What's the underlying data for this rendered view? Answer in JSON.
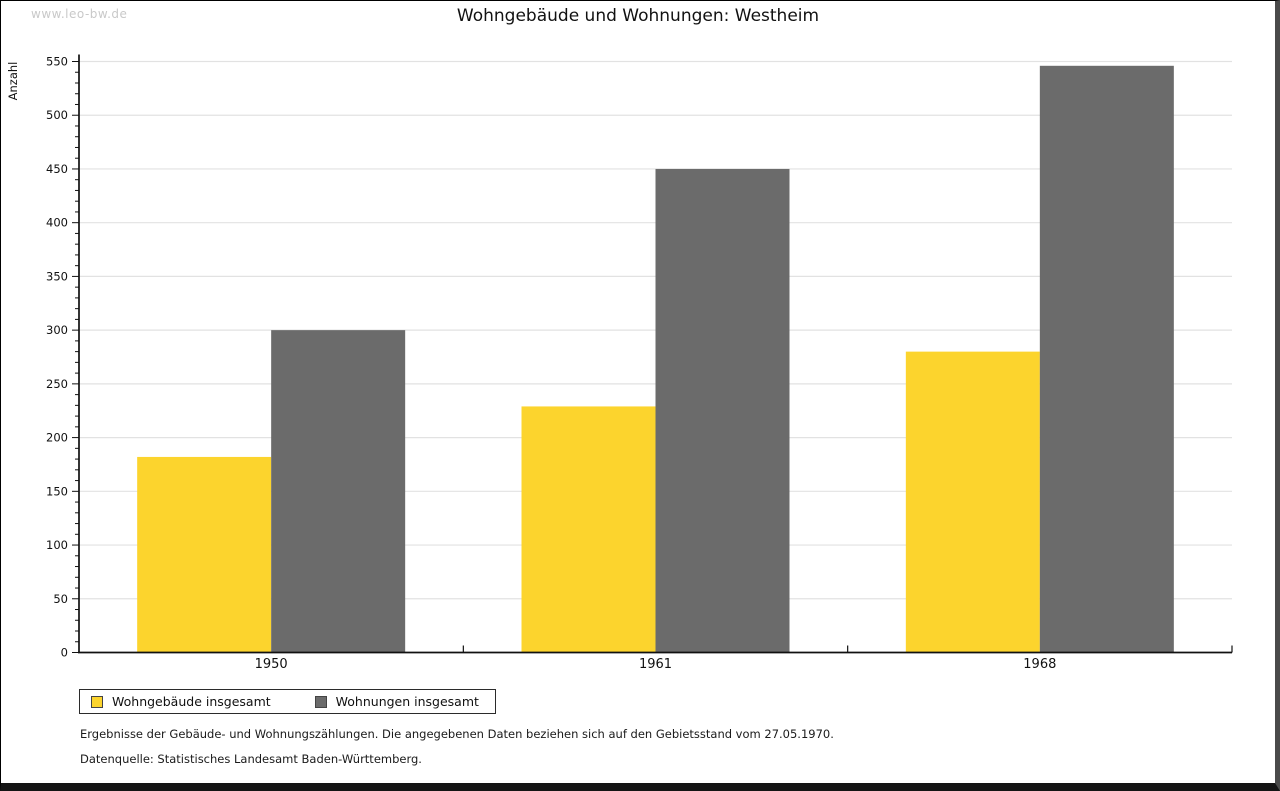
{
  "watermark": "www.leo-bw.de",
  "title": "Wohngebäude und Wohnungen: Westheim",
  "legend": {
    "items": [
      {
        "label": "Wohngebäude insgesamt",
        "color": "#FCD42D"
      },
      {
        "label": "Wohnungen insgesamt",
        "color": "#6B6B6B"
      }
    ]
  },
  "footer": {
    "line1": "Ergebnisse der Gebäude- und Wohnungszählungen. Die angegebenen Daten beziehen sich auf den Gebietsstand vom 27.05.1970.",
    "line2": "Datenquelle: Statistisches Landesamt Baden-Württemberg."
  },
  "chart_data": {
    "type": "bar",
    "title": "Wohngebäude und Wohnungen: Westheim",
    "categories": [
      "1950",
      "1961",
      "1968"
    ],
    "series": [
      {
        "name": "Wohngebäude insgesamt",
        "color": "#FCD42D",
        "values": [
          182,
          229,
          280
        ]
      },
      {
        "name": "Wohnungen insgesamt",
        "color": "#6B6B6B",
        "values": [
          300,
          450,
          546
        ]
      }
    ],
    "xlabel": "",
    "ylabel": "Anzahl",
    "ylim": [
      0,
      550
    ],
    "ytick_major": 50,
    "ytick_minor": 10,
    "grid": "horizontal-major-light-gray",
    "gridline_color": "#e2e2e2",
    "axis_color": "#111111",
    "legend_position": "bottom-left",
    "bar_borders": false
  }
}
